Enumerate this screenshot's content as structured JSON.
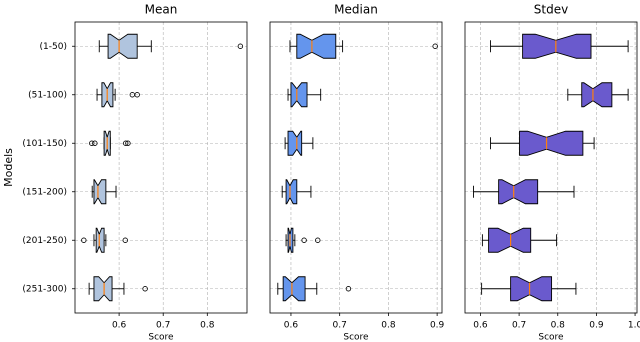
{
  "chart_data": [
    {
      "type": "boxplot",
      "title": "Mean",
      "x_label": "Score",
      "y_label": "Models",
      "color": "#b0c4de",
      "median_color": "#ff7f0e",
      "grid": true,
      "categories": [
        "(1-50)",
        "(51-100)",
        "(101-150)",
        "(151-200)",
        "(201-250)",
        "(251-300)"
      ],
      "xlim": [
        0.5,
        0.89
      ],
      "xticks": [
        0.6,
        0.7,
        0.8
      ],
      "boxes": [
        {
          "low": 0.555,
          "q1": 0.575,
          "median": 0.6,
          "q3": 0.641,
          "high": 0.673,
          "outliers": [
            0.875
          ]
        },
        {
          "low": 0.55,
          "q1": 0.561,
          "median": 0.573,
          "q3": 0.586,
          "high": 0.591,
          "outliers": [
            0.63,
            0.641
          ]
        },
        {
          "low": 0.566,
          "q1": 0.566,
          "median": 0.573,
          "q3": 0.58,
          "high": 0.58,
          "outliers": [
            0.538,
            0.545,
            0.615,
            0.62
          ]
        },
        {
          "low": 0.539,
          "q1": 0.543,
          "median": 0.552,
          "q3": 0.57,
          "high": 0.593,
          "outliers": []
        },
        {
          "low": 0.543,
          "q1": 0.548,
          "median": 0.555,
          "q3": 0.566,
          "high": 0.57,
          "outliers": [
            0.52,
            0.614
          ]
        },
        {
          "low": 0.532,
          "q1": 0.543,
          "median": 0.566,
          "q3": 0.584,
          "high": 0.611,
          "outliers": [
            0.659
          ]
        }
      ]
    },
    {
      "type": "boxplot",
      "title": "Median",
      "x_label": "Score",
      "color": "#6495ed",
      "median_color": "#ff7f0e",
      "grid": true,
      "xlim": [
        0.557,
        0.91
      ],
      "xticks": [
        0.6,
        0.7,
        0.8,
        0.9
      ],
      "boxes": [
        {
          "low": 0.598,
          "q1": 0.612,
          "median": 0.643,
          "q3": 0.692,
          "high": 0.706,
          "outliers": [
            0.896
          ]
        },
        {
          "low": 0.594,
          "q1": 0.6,
          "median": 0.612,
          "q3": 0.633,
          "high": 0.661,
          "outliers": []
        },
        {
          "low": 0.588,
          "q1": 0.594,
          "median": 0.612,
          "q3": 0.622,
          "high": 0.645,
          "outliers": []
        },
        {
          "low": 0.582,
          "q1": 0.59,
          "median": 0.598,
          "q3": 0.612,
          "high": 0.641,
          "outliers": []
        },
        {
          "low": 0.59,
          "q1": 0.594,
          "median": 0.598,
          "q3": 0.604,
          "high": 0.608,
          "outliers": [
            0.627,
            0.655
          ]
        },
        {
          "low": 0.573,
          "q1": 0.584,
          "median": 0.602,
          "q3": 0.629,
          "high": 0.653,
          "outliers": [
            0.718
          ]
        }
      ]
    },
    {
      "type": "boxplot",
      "title": "Stdev",
      "x_label": "Score",
      "color": "#6a5acd",
      "median_color": "#ff7f0e",
      "grid": true,
      "xlim": [
        0.56,
        1.005
      ],
      "xticks": [
        0.6,
        0.7,
        0.8,
        0.9,
        {
          "value": 1,
          "label": "1.0"
        }
      ],
      "boxes": [
        {
          "low": 0.626,
          "q1": 0.709,
          "median": 0.795,
          "q3": 0.886,
          "high": 0.982,
          "outliers": []
        },
        {
          "low": 0.826,
          "q1": 0.862,
          "median": 0.891,
          "q3": 0.94,
          "high": 0.982,
          "outliers": []
        },
        {
          "low": 0.626,
          "q1": 0.701,
          "median": 0.771,
          "q3": 0.865,
          "high": 0.894,
          "outliers": []
        },
        {
          "low": 0.582,
          "q1": 0.647,
          "median": 0.686,
          "q3": 0.748,
          "high": 0.842,
          "outliers": []
        },
        {
          "low": 0.605,
          "q1": 0.621,
          "median": 0.678,
          "q3": 0.73,
          "high": 0.797,
          "outliers": []
        },
        {
          "low": 0.603,
          "q1": 0.678,
          "median": 0.727,
          "q3": 0.784,
          "high": 0.847,
          "outliers": []
        }
      ]
    }
  ]
}
